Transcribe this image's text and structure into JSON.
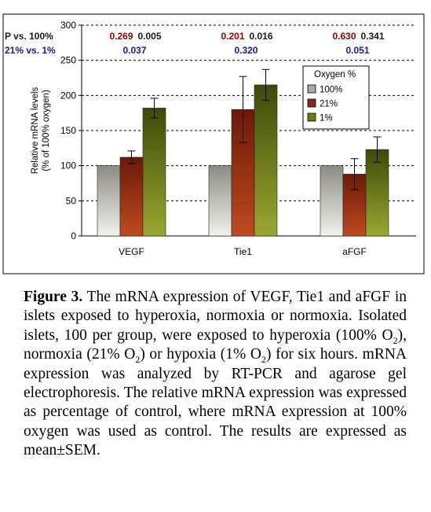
{
  "chart_data": {
    "type": "bar",
    "categories": [
      "VEGF",
      "Tie1",
      "aFGF"
    ],
    "ylabel": "Relative mRNA levels (% of 100% oxygen)",
    "ylabel_line1": "Relative mRNA levels",
    "ylabel_line2": "(% of 100% oxygen)",
    "ylim": [
      0,
      300
    ],
    "yticks": [
      0,
      50,
      100,
      150,
      200,
      250,
      300
    ],
    "grid": "dashed horizontal",
    "legend": {
      "title": "Oxygen %",
      "placement": "top-right",
      "labels": [
        "100%",
        "21%",
        "1%"
      ]
    },
    "series": [
      {
        "name": "100%",
        "values": [
          100,
          100,
          100
        ],
        "errors": [
          0,
          0,
          0
        ],
        "color": "#a9a9a0"
      },
      {
        "name": "21%",
        "values": [
          112,
          180,
          88
        ],
        "errors": [
          9,
          47,
          22
        ],
        "color": "#8b2a10"
      },
      {
        "name": "1%",
        "values": [
          182,
          215,
          123
        ],
        "errors": [
          14,
          22,
          18
        ],
        "color": "#6e7a10"
      }
    ],
    "pvalues": {
      "row1_label": "P vs. 100%",
      "row2_label": "21% vs. 1%",
      "row1": [
        [
          "0.269",
          "0.005"
        ],
        [
          "0.201",
          "0.016"
        ],
        [
          "0.630",
          "0.341"
        ]
      ],
      "row2": [
        "0.037",
        "0.320",
        "0.051"
      ],
      "color_red": "#8b0000",
      "color_dark": "#1a1a1a",
      "color_blue": "#1a1a99"
    }
  },
  "caption": {
    "title": "Figure 3.",
    "part1": " The mRNA expression of VEGF, Tie1 and aFGF in islets exposed to hyperoxia, normoxia or normoxia. Isolated islets, 100 per group, were exposed to hyperoxia (100% O",
    "sub1": "2",
    "part2": "), normoxia (21% O",
    "sub2": "2",
    "part3": ") or hypoxia (1% O",
    "sub3": "2",
    "part4": ") for six hours. mRNA expression was analyzed by RT-PCR and agarose gel electrophoresis. The relative mRNA expression was expressed as percentage of control, where mRNA expression at 100% oxygen was used as control. The results are expressed as mean±SEM."
  }
}
